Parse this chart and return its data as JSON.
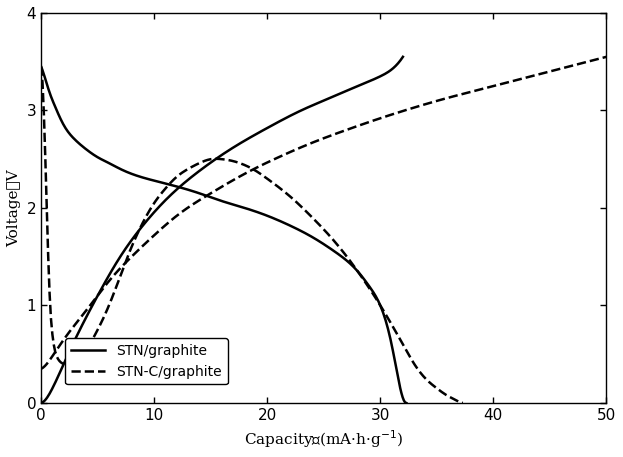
{
  "title": "",
  "xlabel": "Capacity／(mA·h·g⁻¹)",
  "ylabel": "Voltage／V",
  "xlim": [
    0,
    50
  ],
  "ylim": [
    0,
    4
  ],
  "xticks": [
    0,
    10,
    20,
    30,
    40,
    50
  ],
  "yticks": [
    0,
    1,
    2,
    3,
    4
  ],
  "stn_discharge_x": [
    0,
    0.3,
    0.7,
    1.2,
    2,
    3,
    4,
    5,
    6,
    7,
    8,
    10,
    12,
    14,
    16,
    18,
    20,
    22,
    24,
    26,
    28,
    29,
    30,
    31,
    31.5,
    32,
    32.3
  ],
  "stn_discharge_y": [
    3.45,
    3.35,
    3.2,
    3.05,
    2.85,
    2.7,
    2.6,
    2.52,
    2.46,
    2.4,
    2.35,
    2.28,
    2.22,
    2.15,
    2.07,
    2.0,
    1.92,
    1.82,
    1.7,
    1.55,
    1.35,
    1.2,
    1.0,
    0.6,
    0.3,
    0.05,
    0.0
  ],
  "stn_charge_x": [
    0,
    0.5,
    1,
    2,
    3,
    5,
    7,
    9,
    11,
    14,
    17,
    20,
    23,
    26,
    28,
    30,
    31,
    32
  ],
  "stn_charge_y": [
    0.0,
    0.05,
    0.15,
    0.4,
    0.65,
    1.1,
    1.5,
    1.82,
    2.08,
    2.38,
    2.62,
    2.82,
    3.0,
    3.15,
    3.25,
    3.35,
    3.42,
    3.55
  ],
  "stnc_discharge_x": [
    0,
    0.2,
    0.4,
    0.6,
    0.8,
    1.0,
    1.5,
    2,
    3,
    4,
    5,
    6,
    7,
    8,
    9,
    10,
    11,
    12,
    13,
    14,
    15,
    16,
    17,
    18,
    19,
    20,
    22,
    24,
    26,
    28,
    30,
    32,
    33,
    34,
    35,
    36,
    36.5,
    37,
    37.3
  ],
  "stnc_discharge_y": [
    3.45,
    3.1,
    2.4,
    1.6,
    1.0,
    0.7,
    0.45,
    0.4,
    0.42,
    0.55,
    0.75,
    1.0,
    1.3,
    1.6,
    1.85,
    2.05,
    2.2,
    2.32,
    2.4,
    2.46,
    2.5,
    2.5,
    2.48,
    2.44,
    2.38,
    2.3,
    2.12,
    1.9,
    1.65,
    1.35,
    1.0,
    0.6,
    0.4,
    0.25,
    0.15,
    0.07,
    0.04,
    0.01,
    0.0
  ],
  "stnc_charge_x": [
    0,
    0.5,
    1,
    2,
    4,
    6,
    8,
    10,
    12,
    15,
    18,
    21,
    24,
    27,
    30,
    33,
    36,
    39,
    42,
    45,
    47,
    50
  ],
  "stnc_charge_y": [
    0.35,
    0.4,
    0.48,
    0.65,
    0.95,
    1.25,
    1.5,
    1.72,
    1.92,
    2.15,
    2.35,
    2.52,
    2.67,
    2.8,
    2.92,
    3.03,
    3.13,
    3.22,
    3.31,
    3.4,
    3.46,
    3.55
  ],
  "legend_labels": [
    "STN/graphite",
    "STN-C/graphite"
  ],
  "line_color": "#000000",
  "linewidth_solid": 1.8,
  "linewidth_dashed": 1.8
}
